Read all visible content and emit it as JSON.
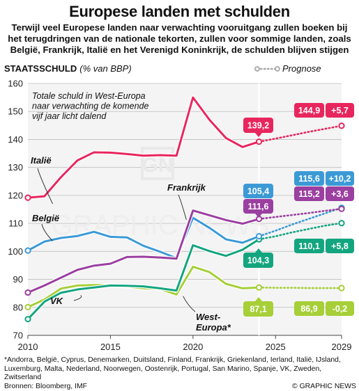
{
  "header": {
    "title": "Europese landen met schulden",
    "subtitle_lines": [
      "Terwijl veel Europese landen naar verwachting vooruitgang zullen boeken bij",
      "het terugdringen van de nationale tekorten, zullen voor sommige landen, zoals",
      "België, Frankrijk, Italië en het Verenigd Koninkrijk, de schulden blijven stijgen"
    ]
  },
  "footer": {
    "note": "*Andorra, België, Cyprus, Denemarken, Duitsland, Finland, Frankrijk, Griekenland, Ierland, Italië, IJsland, Luxemburg, Malta, Nederland, Noorwegen, Oostenrijk, Portugal, San Marino, Spanje, VK, Zweden, Zwitserland",
    "source": "Bronnen: Bloomberg, IMF",
    "credit": "© GRAPHIC NEWS"
  },
  "watermark": "GRAPHIC NEWS",
  "chart_data": {
    "type": "line",
    "ylabel": "STAATSSCHULD",
    "ylabel_unit": "(% van BBP)",
    "legend_label": "Prognose",
    "annotation": [
      "Totale schuld in West-Europa",
      "naar verwachting de komende",
      "vijf jaar licht dalend"
    ],
    "xlim": [
      2010,
      2029
    ],
    "ylim": [
      70,
      160
    ],
    "x_ticks": [
      2010,
      2015,
      2020,
      2025,
      2029
    ],
    "y_ticks": [
      70,
      80,
      90,
      100,
      110,
      120,
      130,
      140,
      150,
      160
    ],
    "grid": true,
    "forecast_start": 2024,
    "x": [
      2010,
      2011,
      2012,
      2013,
      2014,
      2015,
      2016,
      2017,
      2018,
      2019,
      2020,
      2021,
      2022,
      2023,
      2024
    ],
    "forecast_x": [
      2024,
      2025,
      2026,
      2027,
      2028,
      2029
    ],
    "series": [
      {
        "name": "Italië",
        "color": "#e8265e",
        "values": [
          119.2,
          119.7,
          126.5,
          132.5,
          135.4,
          135.3,
          134.8,
          134.2,
          134.4,
          134.2,
          155,
          147,
          140.5,
          137.3,
          139.2
        ],
        "forecast": [
          139.2,
          140.3,
          141.5,
          142.7,
          143.8,
          144.9
        ],
        "label_value": "139,2",
        "end_value": "144,9",
        "end_change": "+5,7"
      },
      {
        "name": "Frankrijk",
        "color": "#9b3fa0",
        "values": [
          85.3,
          87.8,
          90.6,
          93.4,
          94.9,
          95.6,
          98,
          98.1,
          97.8,
          97.4,
          114.6,
          112.9,
          111.2,
          109.9,
          111.6
        ],
        "forecast": [
          111.6,
          112.3,
          113,
          113.7,
          114.5,
          115.2
        ],
        "label_value": "111,6",
        "end_value": "115,2",
        "end_change": "+3,6"
      },
      {
        "name": "België",
        "color": "#3b9ad6",
        "values": [
          100.3,
          103.5,
          104.8,
          105.5,
          107,
          105.2,
          105,
          102,
          99.9,
          97.6,
          112,
          108.4,
          104.3,
          103.1,
          105.4
        ],
        "forecast": [
          105.4,
          107.4,
          109.6,
          111.6,
          113.6,
          115.6
        ],
        "label_value": "105,4",
        "end_value": "115,6",
        "end_change": "+10,2"
      },
      {
        "name": "West-Europa*",
        "color": "#13a57f",
        "values": [
          75.8,
          82,
          85.2,
          86.4,
          87.1,
          87.8,
          87.7,
          87.5,
          86.8,
          86,
          102.2,
          100.1,
          98.4,
          100.6,
          104.3
        ],
        "forecast": [
          104.3,
          105.4,
          106.8,
          108,
          109.2,
          110.1
        ],
        "label_value": "104,3",
        "end_value": "110,1",
        "end_change": "+5,8"
      },
      {
        "name": "VK",
        "color": "#a6cf38",
        "values": [
          80.1,
          82.8,
          86.7,
          87.8,
          88,
          87.9,
          87.5,
          86.8,
          86.6,
          84.6,
          94.5,
          92.6,
          88.4,
          86.8,
          87.1
        ],
        "forecast": [
          87.1,
          87,
          87,
          86.9,
          86.9,
          86.9
        ],
        "label_value": "87,1",
        "end_value": "86,9",
        "end_change": "-0,2"
      }
    ]
  }
}
